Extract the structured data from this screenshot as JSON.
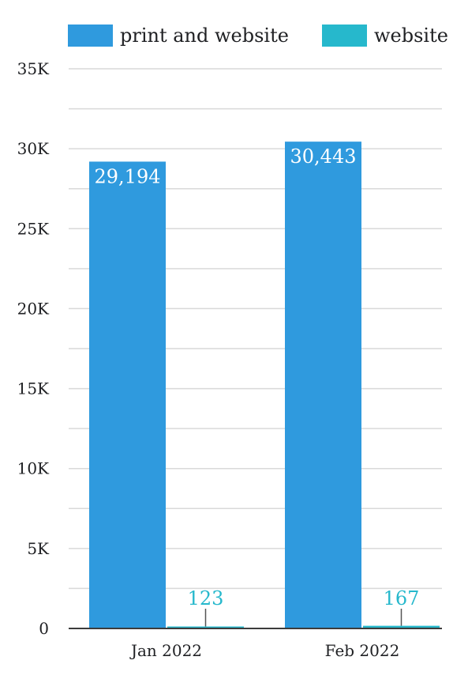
{
  "chart_data": {
    "type": "bar",
    "categories": [
      "Jan 2022",
      "Feb 2022"
    ],
    "series": [
      {
        "name": "print and website",
        "values": [
          29194,
          30443
        ],
        "labels": [
          "29,194",
          "30,443"
        ],
        "color": "#2F9ADE"
      },
      {
        "name": "website",
        "values": [
          123,
          167
        ],
        "labels": [
          "123",
          "167"
        ],
        "color": "#26B8CC"
      }
    ],
    "ylim": [
      0,
      35000
    ],
    "yticks": [
      0,
      5000,
      10000,
      15000,
      20000,
      25000,
      30000,
      35000
    ],
    "ytick_labels": [
      "0",
      "5K",
      "10K",
      "15K",
      "20K",
      "25K",
      "30K",
      "35K"
    ],
    "grid": true,
    "legend_position": "top",
    "colors": {
      "grid": "#d9d9d9",
      "axis": "#3c3c3c",
      "leader": "#555555"
    }
  }
}
